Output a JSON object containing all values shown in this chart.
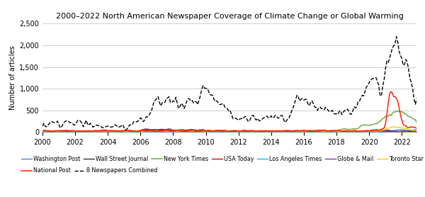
{
  "title": "2000–2022 North American Newspaper Coverage of Climate Change or Global Warming",
  "ylabel": "Number of articles",
  "ylim": [
    0,
    2500
  ],
  "yticks": [
    0,
    500,
    1000,
    1500,
    2000,
    2500
  ],
  "ytick_labels": [
    "0",
    "500",
    "1,000",
    "1,500",
    "2,000",
    "2,500"
  ],
  "xlim": [
    2000,
    2022.9
  ],
  "xticks": [
    2000,
    2002,
    2004,
    2006,
    2008,
    2010,
    2012,
    2014,
    2016,
    2018,
    2020,
    2022
  ],
  "background_color": "#ffffff",
  "grid_color": "#c8c8c8",
  "series_order": [
    "Washington Post",
    "Wall Street Journal",
    "New York Times",
    "USA Today",
    "Los Angeles Times",
    "Globe & Mail",
    "Toronto Star",
    "National Post",
    "8 Newspapers Combined"
  ],
  "series": {
    "Washington Post": {
      "color": "#4472c4",
      "lw": 0.9,
      "ls": "-",
      "zorder": 4
    },
    "Wall Street Journal": {
      "color": "#1f1f1f",
      "lw": 0.9,
      "ls": "-",
      "zorder": 4
    },
    "New York Times": {
      "color": "#70ad47",
      "lw": 1.1,
      "ls": "-",
      "zorder": 5
    },
    "USA Today": {
      "color": "#c00000",
      "lw": 0.9,
      "ls": "-",
      "zorder": 4
    },
    "Los Angeles Times": {
      "color": "#00b0f0",
      "lw": 0.9,
      "ls": "-",
      "zorder": 4
    },
    "Globe & Mail": {
      "color": "#7030a0",
      "lw": 0.9,
      "ls": "-",
      "zorder": 4
    },
    "Toronto Star": {
      "color": "#ffc000",
      "lw": 0.9,
      "ls": "-",
      "zorder": 4
    },
    "National Post": {
      "color": "#ff2400",
      "lw": 1.1,
      "ls": "-",
      "zorder": 6
    },
    "8 Newspapers Combined": {
      "color": "#000000",
      "lw": 1.0,
      "ls": "--",
      "zorder": 7
    }
  },
  "legend_row1": [
    "Washington Post",
    "Wall Street Journal",
    "New York Times",
    "USA Today",
    "Los Angeles Times",
    "Globe & Mail",
    "Toronto Star"
  ],
  "legend_row2": [
    "National Post",
    "8 Newspapers Combined"
  ]
}
